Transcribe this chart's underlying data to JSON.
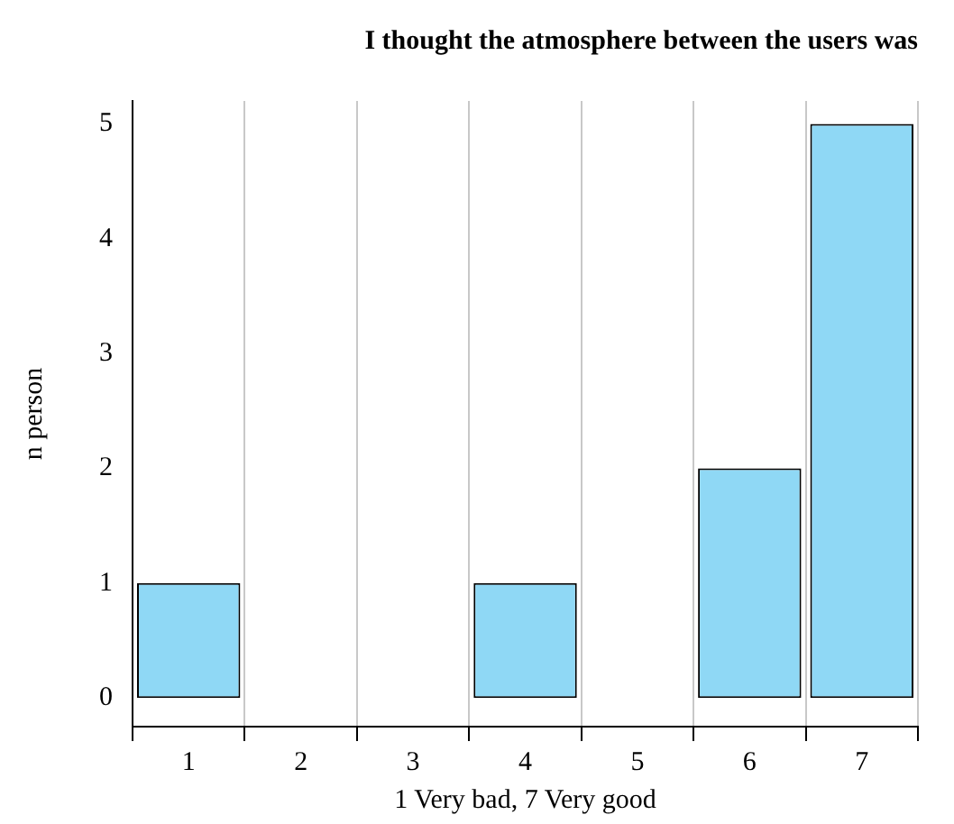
{
  "chart_data": {
    "type": "bar",
    "title": "I thought the atmosphere between the users was",
    "xlabel": "1 Very bad, 7 Very good",
    "ylabel": "n person",
    "categories": [
      "1",
      "2",
      "3",
      "4",
      "5",
      "6",
      "7"
    ],
    "values": [
      1,
      0,
      0,
      1,
      0,
      2,
      5
    ],
    "color": "#8fd8f5",
    "ylim": [
      -0.25,
      5.2
    ],
    "yticks": [
      0,
      1,
      2,
      3,
      4,
      5
    ],
    "grid": "x",
    "legend": false
  }
}
